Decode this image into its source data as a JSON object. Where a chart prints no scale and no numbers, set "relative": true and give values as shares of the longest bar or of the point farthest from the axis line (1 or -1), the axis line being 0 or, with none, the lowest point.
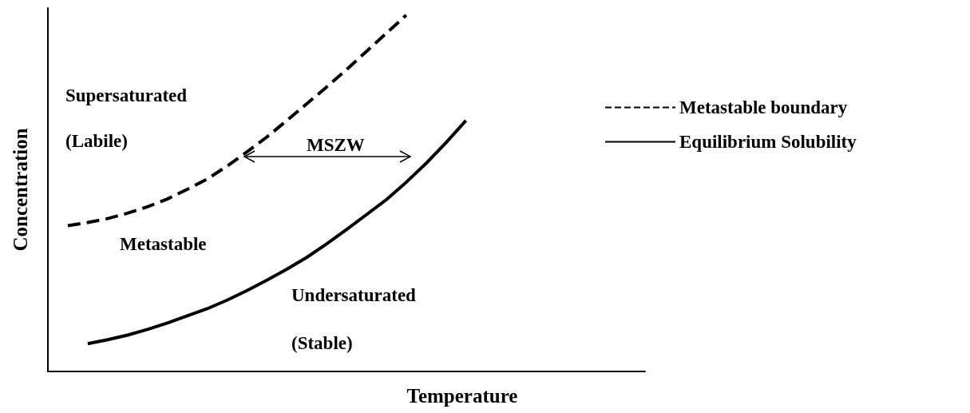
{
  "chart_data": {
    "type": "line",
    "relative": true,
    "xlabel": "Temperature",
    "ylabel": "Concentration",
    "grid": false,
    "legend": "right",
    "marker": "none",
    "categories": [
      null,
      null,
      null,
      null,
      null,
      null,
      null,
      null,
      null,
      null,
      null,
      null,
      null,
      null,
      null,
      null,
      null,
      null,
      null,
      null,
      null,
      null,
      null,
      null,
      null,
      null,
      null,
      null,
      null,
      null,
      null
    ],
    "series": [
      {
        "name": "Metastable boundary",
        "color": "#000000",
        "line_style": "dashed",
        "values": [
          null,
          0.409,
          0.418,
          0.429,
          0.444,
          0.462,
          0.484,
          0.511,
          0.54,
          0.576,
          0.616,
          0.658,
          0.704,
          0.751,
          0.798,
          0.847,
          0.898,
          0.949,
          1.0,
          null,
          null,
          null,
          null,
          null,
          null,
          null,
          null,
          null,
          null,
          null,
          null
        ]
      },
      {
        "name": "Equilibrium Solubility",
        "color": "#000000",
        "line_style": "solid",
        "values": [
          null,
          null,
          0.078,
          0.089,
          0.102,
          0.118,
          0.136,
          0.156,
          0.176,
          0.2,
          0.227,
          0.256,
          0.287,
          0.32,
          0.358,
          0.398,
          0.44,
          0.482,
          0.531,
          0.584,
          0.642,
          0.704,
          null,
          null,
          null,
          null,
          null,
          null,
          null,
          null,
          null
        ]
      }
    ],
    "annotations": [
      "Supersaturated",
      "(Labile)",
      "Metastable",
      "MSZW",
      "Undersaturated",
      "(Stable)"
    ]
  }
}
